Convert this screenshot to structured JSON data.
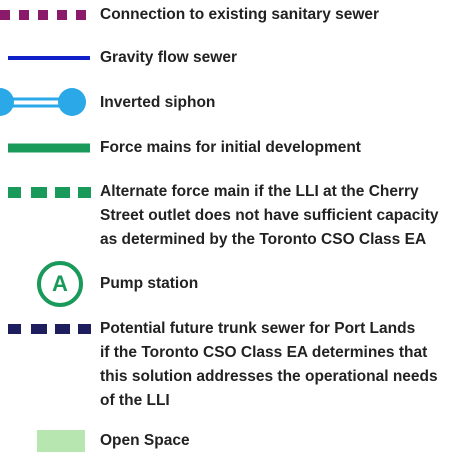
{
  "legend": {
    "items": [
      {
        "lines": [
          "Connection to existing sanitary sewer"
        ]
      },
      {
        "lines": [
          "Gravity flow sewer"
        ]
      },
      {
        "lines": [
          "Inverted siphon"
        ]
      },
      {
        "lines": [
          "Force mains for initial development"
        ]
      },
      {
        "lines": [
          "Alternate force main if the LLI at the Cherry",
          "Street outlet does not have sufficient capacity",
          "as determined by the Toronto CSO Class EA"
        ]
      },
      {
        "symbol_text": "A",
        "lines": [
          "Pump station"
        ]
      },
      {
        "lines": [
          "Potential future trunk sewer for Port Lands",
          "if the Toronto CSO Class EA determines that",
          "this solution addresses the operational needs",
          "of the LLI"
        ]
      },
      {
        "lines": [
          "Open Space"
        ]
      }
    ]
  }
}
